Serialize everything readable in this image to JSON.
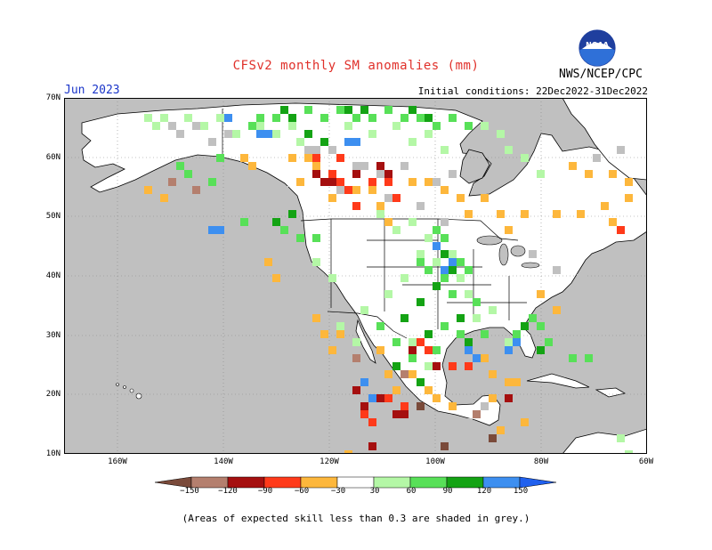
{
  "header": {
    "title": "CFSv2 monthly SM anomalies (mm)",
    "month": "Jun 2023",
    "initial_conditions": "Initial conditions: 22Dec2022-31Dec2022",
    "credit": "NWS/NCEP/CPC",
    "logo_text": "NOAA"
  },
  "map": {
    "region": "North America",
    "y_labels": [
      "70N",
      "60N",
      "50N",
      "40N",
      "30N",
      "20N",
      "10N"
    ],
    "x_labels": [
      "160W",
      "140W",
      "120W",
      "100W",
      "80W",
      "60W"
    ],
    "ocean_color": "#c0c0c0",
    "land_color": "#ffffff",
    "colors": {
      "neg150": "#7a4a3a",
      "neg120": "#b47f6e",
      "neg90": "#a50f0f",
      "neg60": "#ff3a1a",
      "neg30": "#fdb73c",
      "pos30": "#b4f7a6",
      "pos60": "#58e058",
      "pos90": "#14a314",
      "pos120": "#3d8ff0",
      "pos150": "#2060ee",
      "skill": "#c0c0c0"
    }
  },
  "colorbar": {
    "labels": [
      "−150",
      "−120",
      "−90",
      "−60",
      "−30",
      "30",
      "60",
      "90",
      "120",
      "150"
    ],
    "colors": [
      "#7a4a3a",
      "#b47f6e",
      "#a50f0f",
      "#ff3a1a",
      "#fdb73c",
      "#ffffff",
      "#b4f7a6",
      "#58e058",
      "#14a314",
      "#3d8ff0",
      "#2060ee"
    ]
  },
  "footer": {
    "note": "(Areas of expected skill less than 0.3 are shaded in grey.)"
  }
}
